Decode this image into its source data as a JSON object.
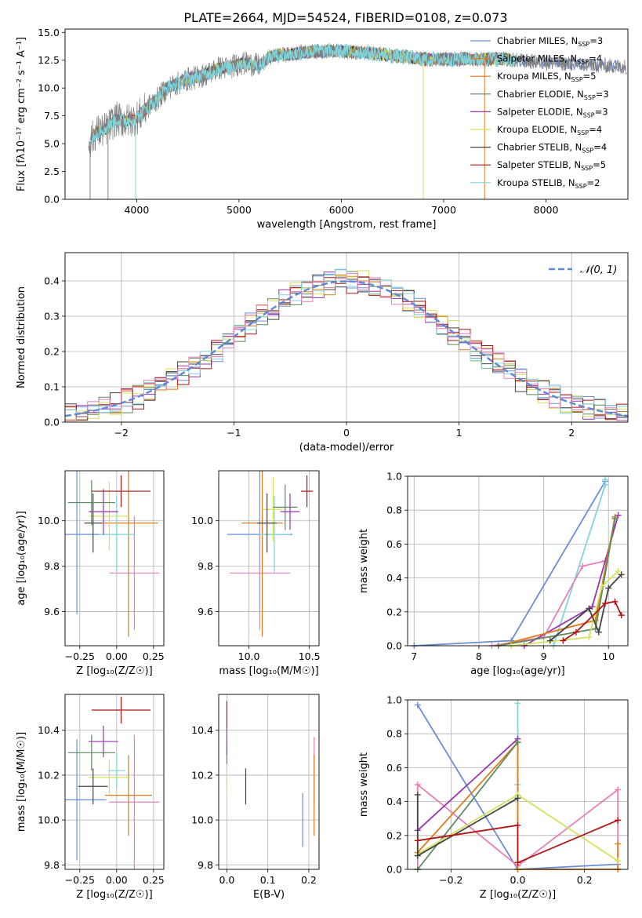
{
  "figure": {
    "title": "PLATE=2664, MJD=54524, FIBERID=0108, z=0.073"
  },
  "chart_data": [
    {
      "id": "spectrum",
      "type": "line",
      "xlabel": "wavelength [Angstrom, rest frame]",
      "ylabel": "Flux [fλ10⁻¹⁷ erg cm⁻² s⁻¹ A⁻¹]",
      "xlim": [
        3300,
        8800
      ],
      "ylim": [
        0,
        15.3
      ],
      "xticks": [
        4000,
        5000,
        6000,
        7000,
        8000
      ],
      "yticks": [
        0.0,
        2.5,
        5.0,
        7.5,
        10.0,
        12.5,
        15.0
      ],
      "grid": false,
      "legend": "top-right",
      "data_curve": {
        "x": [
          3530,
          3600,
          3700,
          3800,
          3900,
          4000,
          4100,
          4200,
          4300,
          4400,
          4500,
          4600,
          4700,
          4800,
          4900,
          5000,
          5100,
          5200,
          5300,
          5400,
          5500,
          5600,
          5800,
          6000,
          6200,
          6400,
          6600,
          6800,
          7000,
          7200,
          7400,
          7600,
          7800,
          8000,
          8200,
          8400,
          8600,
          8800
        ],
        "y": [
          5.0,
          6.0,
          6.3,
          7.2,
          7.0,
          7.3,
          8.2,
          9.0,
          10.0,
          10.4,
          10.8,
          11.0,
          11.3,
          11.8,
          11.8,
          12.2,
          12.2,
          12.0,
          12.8,
          13.0,
          13.0,
          13.2,
          13.3,
          13.3,
          13.2,
          13.0,
          12.8,
          12.6,
          12.6,
          12.6,
          12.6,
          12.6,
          12.4,
          12.3,
          12.2,
          12.1,
          12.0,
          11.9
        ]
      },
      "series": [
        {
          "name": "Chabrier MILES, N_SSP=3",
          "color": "#6a8ed6"
        },
        {
          "name": "Salpeter MILES, N_SSP=4",
          "color": "#e07b1a"
        },
        {
          "name": "Kroupa MILES, N_SSP=5",
          "color": "#e07b1a"
        },
        {
          "name": "Chabrier ELODIE, N_SSP=3",
          "color": "#5e8a5e"
        },
        {
          "name": "Salpeter ELODIE, N_SSP=3",
          "color": "#9a33b0"
        },
        {
          "name": "Kroupa ELODIE, N_SSP=4",
          "color": "#d4e05a"
        },
        {
          "name": "Chabrier STELIB, N_SSP=4",
          "color": "#444444"
        },
        {
          "name": "Salpeter STELIB, N_SSP=5",
          "color": "#b01515"
        },
        {
          "name": "Kroupa STELIB, N_SSP=2",
          "color": "#7fd4dc"
        }
      ]
    },
    {
      "id": "residuals",
      "type": "line",
      "xlabel": "(data-model)/error",
      "ylabel": "Normed distribution",
      "xlim": [
        -2.5,
        2.5
      ],
      "ylim": [
        0,
        0.48
      ],
      "xticks": [
        -2,
        -1,
        0,
        1,
        2
      ],
      "yticks": [
        0.0,
        0.1,
        0.2,
        0.3,
        0.4
      ],
      "grid": true,
      "legend": "top-right",
      "gaussian_label": "𝒩(0, 1)",
      "hist_colors": [
        "#6a8ed6",
        "#e07b1a",
        "#5e8a5e",
        "#9a33b0",
        "#d4e05a",
        "#444444",
        "#b01515",
        "#7fd4dc",
        "#e87fb8"
      ]
    },
    {
      "id": "age-vs-Z",
      "type": "scatter",
      "xlabel": "Z [log₁₀(Z/Z☉)]",
      "ylabel": "age  [log₁₀(age/yr)]",
      "xlim": [
        -0.35,
        0.32
      ],
      "ylim": [
        9.45,
        10.22
      ],
      "xticks": [
        -0.25,
        0.0,
        0.25
      ],
      "yticks": [
        9.6,
        9.8,
        10.0
      ],
      "grid": true,
      "points": [
        {
          "x": -0.27,
          "y": 9.94,
          "xerr": 0.2,
          "yerr": 0.35,
          "color": "#6a8ed6"
        },
        {
          "x": 0.12,
          "y": 9.77,
          "xerr": 0.17,
          "yerr": 0.25,
          "color": "#e87fb8"
        },
        {
          "x": 0.08,
          "y": 9.99,
          "xerr": 0.2,
          "yerr": 0.5,
          "color": "#e07b1a"
        },
        {
          "x": 0.0,
          "y": 9.94,
          "xerr": 0.12,
          "yerr": 0.17,
          "color": "#7fd4dc"
        },
        {
          "x": -0.05,
          "y": 10.02,
          "xerr": 0.14,
          "yerr": 0.15,
          "color": "#d4e05a"
        },
        {
          "x": -0.16,
          "y": 9.99,
          "xerr": 0.06,
          "yerr": 0.13,
          "color": "#444444"
        },
        {
          "x": -0.17,
          "y": 10.08,
          "xerr": 0.16,
          "yerr": 0.1,
          "color": "#5e8a5e"
        },
        {
          "x": -0.09,
          "y": 10.04,
          "xerr": 0.1,
          "yerr": 0.1,
          "color": "#9a33b0"
        },
        {
          "x": 0.03,
          "y": 10.13,
          "xerr": 0.2,
          "yerr": 0.07,
          "color": "#b01515"
        }
      ]
    },
    {
      "id": "age-vs-mass",
      "type": "scatter",
      "xlabel": "mass [log₁₀(M/M☉)]",
      "ylabel": "",
      "xlim": [
        9.75,
        10.58
      ],
      "ylim": [
        9.45,
        10.22
      ],
      "xticks": [
        10.0,
        10.5
      ],
      "yticks": [
        9.6,
        9.8,
        10.0
      ],
      "grid": true,
      "points": [
        {
          "x": 10.09,
          "y": 9.94,
          "xerr": 0.27,
          "yerr": 0.35,
          "color": "#6a8ed6"
        },
        {
          "x": 10.09,
          "y": 9.77,
          "xerr": 0.25,
          "yerr": 0.25,
          "color": "#e87fb8"
        },
        {
          "x": 10.11,
          "y": 9.99,
          "xerr": 0.17,
          "yerr": 0.5,
          "color": "#e07b1a"
        },
        {
          "x": 10.21,
          "y": 9.94,
          "xerr": 0.13,
          "yerr": 0.17,
          "color": "#7fd4dc"
        },
        {
          "x": 10.2,
          "y": 10.05,
          "xerr": 0.08,
          "yerr": 0.14,
          "color": "#d4e05a"
        },
        {
          "x": 10.15,
          "y": 9.99,
          "xerr": 0.08,
          "yerr": 0.13,
          "color": "#444444"
        },
        {
          "x": 10.3,
          "y": 10.06,
          "xerr": 0.1,
          "yerr": 0.1,
          "color": "#5e8a5e"
        },
        {
          "x": 10.34,
          "y": 10.04,
          "xerr": 0.08,
          "yerr": 0.08,
          "color": "#9a33b0"
        },
        {
          "x": 10.48,
          "y": 10.13,
          "xerr": 0.05,
          "yerr": 0.07,
          "color": "#b01515"
        }
      ]
    },
    {
      "id": "massweight-vs-age",
      "type": "line",
      "xlabel": "age  [log₁₀(age/yr)]",
      "ylabel": "mass weight",
      "xlim": [
        6.9,
        10.3
      ],
      "ylim": [
        0,
        1.0
      ],
      "xticks": [
        7,
        8,
        9,
        10
      ],
      "yticks": [
        0.0,
        0.2,
        0.4,
        0.6,
        0.8,
        1.0
      ],
      "grid": true,
      "series": [
        {
          "color": "#6a8ed6",
          "x": [
            7.0,
            8.5,
            9.95
          ],
          "y": [
            0.0,
            0.03,
            0.97
          ]
        },
        {
          "color": "#7fd4dc",
          "x": [
            9.15,
            9.95,
            9.95
          ],
          "y": [
            0.0,
            0.95,
            0.98
          ]
        },
        {
          "color": "#e87fb8",
          "x": [
            8.2,
            9.0,
            9.6,
            9.95
          ],
          "y": [
            0.0,
            0.05,
            0.47,
            0.5
          ]
        },
        {
          "color": "#9a33b0",
          "x": [
            8.7,
            9.75,
            10.15
          ],
          "y": [
            0.0,
            0.23,
            0.77
          ]
        },
        {
          "color": "#e07b1a",
          "x": [
            8.3,
            9.8,
            10.1
          ],
          "y": [
            0.0,
            0.15,
            0.76
          ]
        },
        {
          "color": "#5e8a5e",
          "x": [
            8.3,
            9.8,
            10.1
          ],
          "y": [
            0.0,
            0.1,
            0.75
          ]
        },
        {
          "color": "#d4e05a",
          "x": [
            8.5,
            9.7,
            9.9,
            10.15
          ],
          "y": [
            0.0,
            0.05,
            0.35,
            0.44
          ]
        },
        {
          "color": "#444444",
          "x": [
            9.1,
            9.7,
            9.85,
            10.0,
            10.2
          ],
          "y": [
            0.03,
            0.22,
            0.08,
            0.34,
            0.42
          ]
        },
        {
          "color": "#b01515",
          "x": [
            9.3,
            9.5,
            9.95,
            10.1,
            10.2
          ],
          "y": [
            0.03,
            0.08,
            0.25,
            0.26,
            0.18
          ]
        }
      ]
    },
    {
      "id": "mass-vs-Z",
      "type": "scatter",
      "xlabel": "Z [log₁₀(Z/Z☉)]",
      "ylabel": "mass [log₁₀(M/M☉)]",
      "xlim": [
        -0.35,
        0.32
      ],
      "ylim": [
        9.78,
        10.56
      ],
      "xticks": [
        -0.25,
        0.0,
        0.25
      ],
      "yticks": [
        9.8,
        10.0,
        10.2,
        10.4
      ],
      "grid": true,
      "points": [
        {
          "x": -0.27,
          "y": 10.09,
          "xerr": 0.2,
          "yerr": 0.27,
          "color": "#6a8ed6"
        },
        {
          "x": 0.12,
          "y": 10.08,
          "xerr": 0.17,
          "yerr": 0.3,
          "color": "#e87fb8"
        },
        {
          "x": 0.08,
          "y": 10.11,
          "xerr": 0.16,
          "yerr": 0.18,
          "color": "#e07b1a"
        },
        {
          "x": 0.0,
          "y": 10.22,
          "xerr": 0.06,
          "yerr": 0.08,
          "color": "#7fd4dc"
        },
        {
          "x": -0.05,
          "y": 10.19,
          "xerr": 0.14,
          "yerr": 0.08,
          "color": "#d4e05a"
        },
        {
          "x": -0.16,
          "y": 10.15,
          "xerr": 0.1,
          "yerr": 0.08,
          "color": "#444444"
        },
        {
          "x": -0.17,
          "y": 10.3,
          "xerr": 0.16,
          "yerr": 0.08,
          "color": "#5e8a5e"
        },
        {
          "x": -0.09,
          "y": 10.35,
          "xerr": 0.1,
          "yerr": 0.07,
          "color": "#9a33b0"
        },
        {
          "x": 0.03,
          "y": 10.49,
          "xerr": 0.2,
          "yerr": 0.06,
          "color": "#b01515"
        }
      ]
    },
    {
      "id": "mass-vs-ebv",
      "type": "scatter",
      "xlabel": "E(B-V)",
      "ylabel": "",
      "xlim": [
        -0.02,
        0.225
      ],
      "ylim": [
        9.78,
        10.56
      ],
      "xticks": [
        0.0,
        0.1,
        0.2
      ],
      "yticks": [
        9.8,
        10.0,
        10.2,
        10.4
      ],
      "grid": true,
      "points": [
        {
          "x": 0.185,
          "y": 10.0,
          "xerr": 0.0,
          "yerr": 0.12,
          "color": "#6a8ed6"
        },
        {
          "x": 0.213,
          "y": 10.22,
          "xerr": 0.0,
          "yerr": 0.15,
          "color": "#e87fb8"
        },
        {
          "x": 0.213,
          "y": 10.11,
          "xerr": 0.0,
          "yerr": 0.18,
          "color": "#e07b1a"
        },
        {
          "x": 0.046,
          "y": 10.15,
          "xerr": 0.0,
          "yerr": 0.08,
          "color": "#444444"
        },
        {
          "x": 0.0,
          "y": 10.22,
          "xerr": 0.0,
          "yerr": 0.08,
          "color": "#7fd4dc"
        },
        {
          "x": 0.0,
          "y": 10.18,
          "xerr": 0.0,
          "yerr": 0.06,
          "color": "#d4e05a"
        },
        {
          "x": 0.0,
          "y": 10.3,
          "xerr": 0.0,
          "yerr": 0.05,
          "color": "#5e8a5e"
        },
        {
          "x": 0.0,
          "y": 10.35,
          "xerr": 0.0,
          "yerr": 0.06,
          "color": "#9a33b0"
        },
        {
          "x": 0.0,
          "y": 10.47,
          "xerr": 0.0,
          "yerr": 0.06,
          "color": "#b01515"
        }
      ]
    },
    {
      "id": "massweight-vs-Z",
      "type": "line",
      "xlabel": "Z [log₁₀(Z/Z☉)]",
      "ylabel": "mass weight",
      "xlim": [
        -0.33,
        0.33
      ],
      "ylim": [
        0,
        1.0
      ],
      "xticks": [
        -0.2,
        0.0,
        0.2
      ],
      "yticks": [
        0.0,
        0.2,
        0.4,
        0.6,
        0.8,
        1.0
      ],
      "grid": true,
      "series": [
        {
          "color": "#6a8ed6",
          "x": [
            -0.3,
            0.0,
            0.3
          ],
          "y": [
            0.97,
            0.0,
            0.03
          ]
        },
        {
          "color": "#7fd4dc",
          "x": [
            0.0,
            0.0,
            0.0
          ],
          "y": [
            0.0,
            0.5,
            0.98
          ]
        },
        {
          "color": "#e87fb8",
          "x": [
            -0.3,
            -0.3,
            0.0,
            0.3,
            0.3
          ],
          "y": [
            0.0,
            0.5,
            0.02,
            0.47,
            0.0
          ]
        },
        {
          "color": "#9a33b0",
          "x": [
            -0.3,
            0.0
          ],
          "y": [
            0.23,
            0.77
          ]
        },
        {
          "color": "#e07b1a",
          "x": [
            -0.3,
            0.0,
            0.0,
            0.3,
            0.3
          ],
          "y": [
            0.1,
            0.75,
            0.0,
            0.0,
            0.15
          ]
        },
        {
          "color": "#5e8a5e",
          "x": [
            -0.3,
            0.0
          ],
          "y": [
            0.0,
            0.75
          ]
        },
        {
          "color": "#d4e05a",
          "x": [
            -0.3,
            0.0,
            0.3
          ],
          "y": [
            0.09,
            0.44,
            0.05
          ]
        },
        {
          "color": "#444444",
          "x": [
            -0.3,
            -0.3,
            0.0
          ],
          "y": [
            0.44,
            0.08,
            0.42
          ]
        },
        {
          "color": "#b01515",
          "x": [
            -0.3,
            0.0,
            0.0,
            0.3
          ],
          "y": [
            0.17,
            0.26,
            0.04,
            0.29
          ]
        }
      ]
    }
  ]
}
